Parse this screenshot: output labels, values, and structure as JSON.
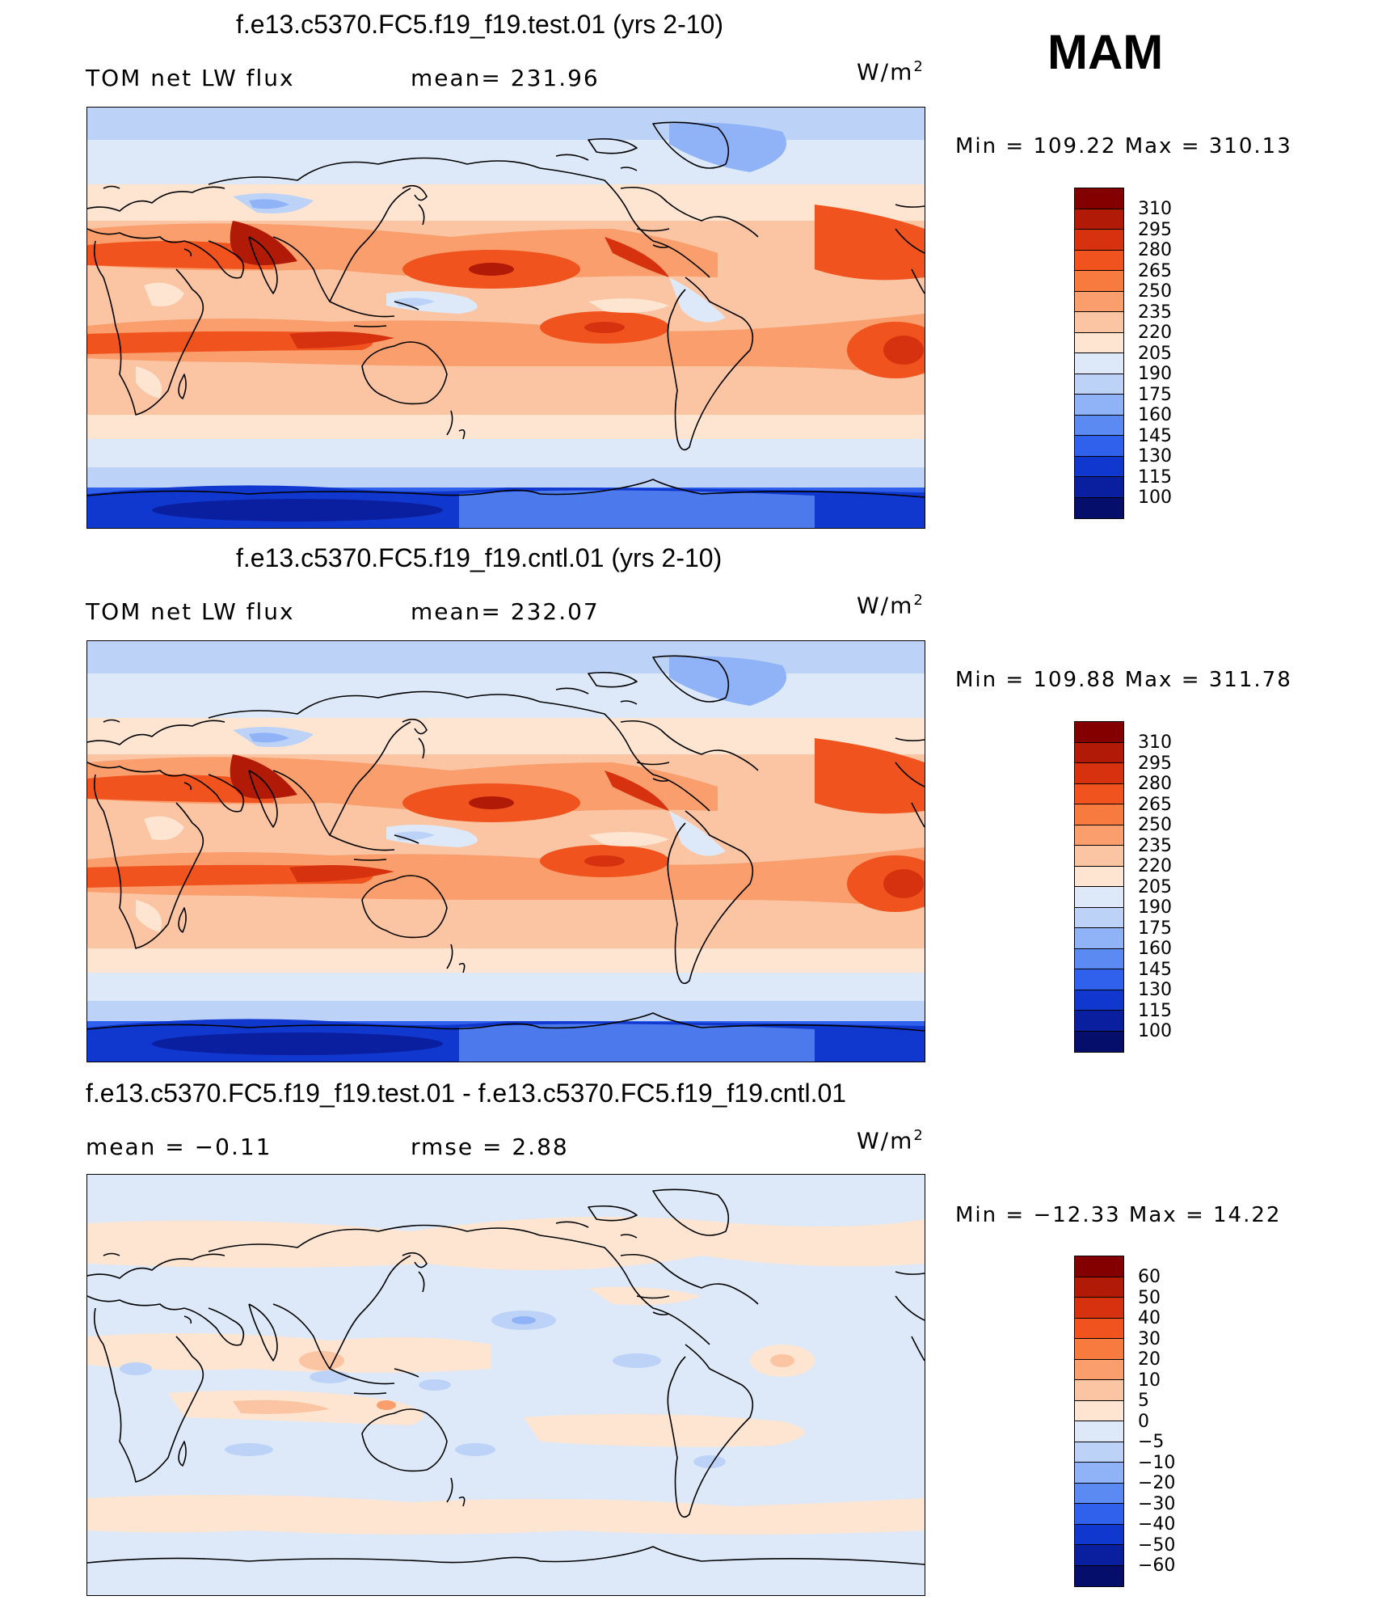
{
  "season": "MAM",
  "panels": [
    {
      "case_title": "f.e13.c5370.FC5.f19_f19.test.01 (yrs 2-10)",
      "left_label": "TOM net LW flux",
      "center_label": "mean= 231.96",
      "units": "W/m",
      "units_exp": "2",
      "minmax": "Min  =  109.22  Max  =  310.13",
      "colorbar": {
        "labels": [
          "310",
          "295",
          "280",
          "265",
          "250",
          "235",
          "220",
          "205",
          "190",
          "175",
          "160",
          "145",
          "130",
          "115",
          "100"
        ]
      },
      "style": "abs"
    },
    {
      "case_title": "f.e13.c5370.FC5.f19_f19.cntl.01 (yrs 2-10)",
      "left_label": "TOM net LW flux",
      "center_label": "mean= 232.07",
      "units": "W/m",
      "units_exp": "2",
      "minmax": "Min  =  109.88  Max  =  311.78",
      "colorbar": {
        "labels": [
          "310",
          "295",
          "280",
          "265",
          "250",
          "235",
          "220",
          "205",
          "190",
          "175",
          "160",
          "145",
          "130",
          "115",
          "100"
        ]
      },
      "style": "abs"
    },
    {
      "case_title": "f.e13.c5370.FC5.f19_f19.test.01 - f.e13.c5370.FC5.f19_f19.cntl.01",
      "left_label": "mean  =   −0.11",
      "center_label": "rmse  =    2.88",
      "units": "W/m",
      "units_exp": "2",
      "minmax": "Min  =  −12.33  Max  =   14.22",
      "colorbar": {
        "labels": [
          "60",
          "50",
          "40",
          "30",
          "20",
          "10",
          "5",
          "0",
          "−5",
          "−10",
          "−20",
          "−30",
          "−40",
          "−50",
          "−60"
        ]
      },
      "style": "diff"
    }
  ],
  "colors": {
    "abs_palette": [
      "#840000",
      "#b11a06",
      "#d7320f",
      "#f0531d",
      "#f77a3e",
      "#f99e6c",
      "#fbc4a2",
      "#fde5d2",
      "#dde9f8",
      "#bcd3f7",
      "#8fb3f6",
      "#5b8af2",
      "#2f61ec",
      "#1038cf",
      "#0a1fa0",
      "#050e6a"
    ],
    "diff_palette": [
      "#840000",
      "#b11a06",
      "#d7320f",
      "#f0531d",
      "#f77a3e",
      "#f99e6c",
      "#fbc4a2",
      "#fde5d2",
      "#dde9f8",
      "#bcd3f7",
      "#8fb3f6",
      "#5b8af2",
      "#2f61ec",
      "#1038cf",
      "#0a1fa0",
      "#050e6a"
    ]
  }
}
